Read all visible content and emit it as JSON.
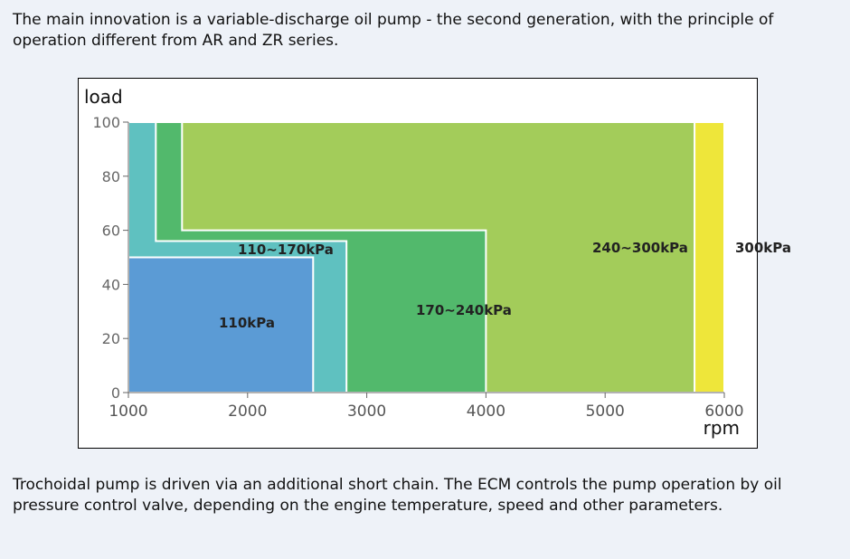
{
  "paragraphs": [
    "The main innovation is a variable-discharge oil pump - the second generation, with the principle of operation different from AR and ZR series.",
    "Trochoidal pump is driven via an additional short chain. The ECM controls the pump operation by oil pressure control valve, depending on the engine temperature, speed and other parameters."
  ],
  "chart_data": {
    "type": "area-regions",
    "xlabel": "rpm",
    "ylabel": "load",
    "xlim": [
      1000,
      6000
    ],
    "xticks": [
      1000,
      2000,
      3000,
      4000,
      5000,
      6000
    ],
    "ylim": [
      0,
      100
    ],
    "yticks": [
      0,
      20,
      40,
      60,
      80,
      100
    ],
    "regions": [
      {
        "name": "300kPa",
        "color": "#eee63a",
        "x": [
          5750,
          6000,
          6000,
          5750
        ],
        "y": [
          0,
          0,
          100,
          100
        ]
      },
      {
        "name": "240∼300kPa",
        "color": "#a3cc5a",
        "x": [
          1000,
          5750,
          5750,
          1000
        ],
        "y": [
          0,
          0,
          100,
          100
        ]
      },
      {
        "name": "170∼240kPa",
        "color": "#52b96c",
        "x": [
          1000,
          4000,
          4000,
          1450,
          1450,
          1000
        ],
        "y": [
          0,
          0,
          60,
          60,
          100,
          100
        ]
      },
      {
        "name": "110∼170kPa",
        "color": "#5fc1c0",
        "x": [
          1000,
          2830,
          2830,
          1230,
          1230,
          1000
        ],
        "y": [
          0,
          0,
          56,
          56,
          100,
          100
        ]
      },
      {
        "name": "110kPa",
        "color": "#5b9bd5",
        "x": [
          1000,
          2550,
          2550,
          1000
        ],
        "y": [
          0,
          0,
          50,
          50
        ]
      }
    ]
  }
}
